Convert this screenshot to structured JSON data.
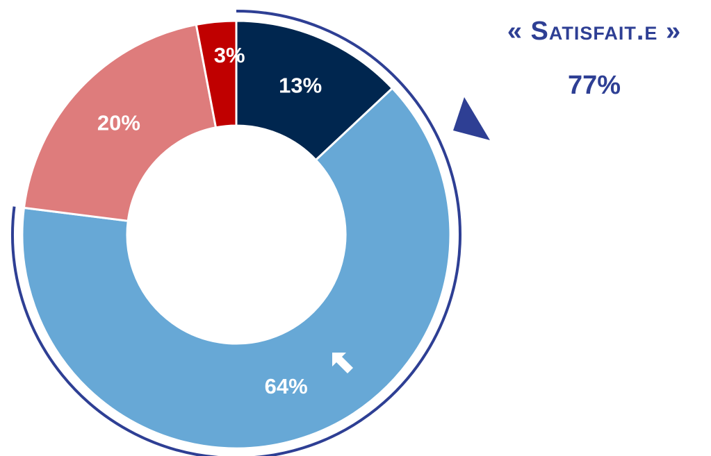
{
  "chart_data": {
    "type": "donut",
    "values": [
      13,
      64,
      20,
      3
    ],
    "value_labels": [
      "13%",
      "64%",
      "20%",
      "3%"
    ],
    "colors": [
      "#00264f",
      "#67a8d6",
      "#de7c7c",
      "#c00000"
    ],
    "annotation": {
      "label": "« Satisfait.e »",
      "value": 77,
      "value_label": "77%",
      "color": "#2e3f94"
    }
  }
}
